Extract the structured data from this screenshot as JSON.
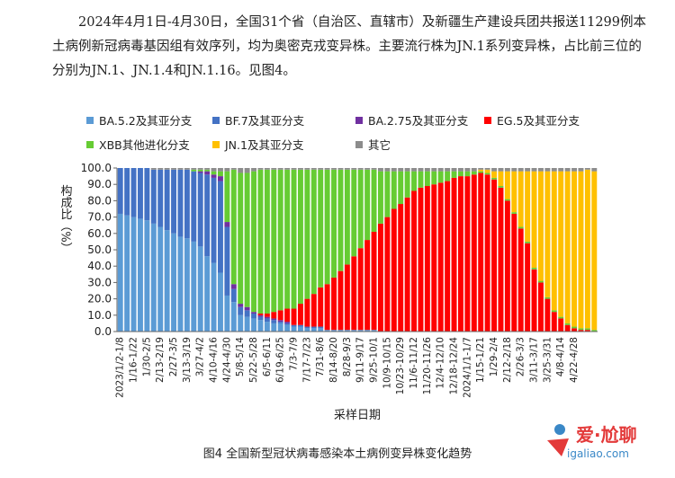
{
  "intro": {
    "line1": "2024年4月1日-4月30日，全国31个省（自治区、直辖市）及新疆生产建设兵团共报送11299例本土病例新冠病毒基因组有效序列，均为奥密克戎变异株。主要流行株为JN.1系列变异株，占比前三位的分别为JN.1、JN.1.4和JN.1.16。见图4。"
  },
  "caption": "图4 全国新型冠状病毒感染本土病例变异株变化趋势",
  "watermark": {
    "brand": "爱·尬聊",
    "url": "igaliao.com"
  },
  "chart_data": {
    "type": "bar",
    "stacked": true,
    "ylabel": "构成比（%）",
    "xlabel": "采样日期",
    "ylim": [
      0,
      100
    ],
    "yticks": [
      "0.0",
      "10.0",
      "20.0",
      "30.0",
      "40.0",
      "50.0",
      "60.0",
      "70.0",
      "80.0",
      "90.0",
      "100.0"
    ],
    "xticks_shown": [
      "2023/1/2-1/8",
      "1/16-1/22",
      "1/30-2/5",
      "2/13-2/19",
      "2/27-3/5",
      "3/13-3/19",
      "3/27-4/2",
      "4/10-4/16",
      "4/24-4/30",
      "5/8-5/14",
      "5/22-5/28",
      "6/5-6/11",
      "6/19-6/25",
      "7/3-7/9",
      "7/17-7/23",
      "7/31-8/6",
      "8/14-8/20",
      "8/28-9/3",
      "9/11-9/17",
      "9/25-10/1",
      "10/9-10/15",
      "10/23-10/29",
      "11/6-11/12",
      "11/20-11/26",
      "12/4-12/10",
      "12/18-12/24",
      "2024/1/1-1/7",
      "1/15-1/21",
      "1/29-2/4",
      "2/12-2/18",
      "2/26-3/3",
      "3/11-3/17",
      "3/25-3/31",
      "4/8-4/14",
      "4/22-4/28"
    ],
    "series": [
      {
        "name": "BA.5.2及其亚分支",
        "color": "#5b9bd5",
        "values": [
          72,
          71,
          70,
          69,
          68,
          66,
          64,
          62,
          60,
          58,
          57,
          55,
          52,
          46,
          42,
          36,
          22,
          18,
          10,
          9,
          8,
          7,
          6,
          5,
          5,
          4,
          3,
          3,
          2,
          2,
          2,
          1,
          1,
          1,
          1,
          1,
          1,
          1,
          1,
          0,
          0,
          0,
          0,
          0,
          0,
          0,
          0,
          0,
          0,
          0,
          0,
          0,
          0,
          0,
          0,
          0,
          0,
          0,
          0,
          0,
          0,
          0,
          0,
          0,
          0,
          0,
          0,
          0,
          0,
          0,
          0,
          0
        ]
      },
      {
        "name": "BF.7及其亚分支",
        "color": "#4472c4",
        "values": [
          28,
          29,
          30,
          31,
          32,
          33,
          35,
          37,
          39,
          41,
          42,
          43,
          45,
          50,
          52,
          56,
          42,
          8,
          5,
          4,
          3,
          2,
          2,
          2,
          1,
          1,
          1,
          1,
          1,
          1,
          1,
          0,
          0,
          0,
          0,
          0,
          0,
          0,
          0,
          0,
          0,
          0,
          0,
          0,
          0,
          0,
          0,
          0,
          0,
          0,
          0,
          0,
          0,
          0,
          0,
          0,
          0,
          0,
          0,
          0,
          0,
          0,
          0,
          0,
          0,
          0,
          0,
          0,
          0,
          0,
          0,
          0
        ]
      },
      {
        "name": "BA.2.75及其亚分支",
        "color": "#7030a0",
        "values": [
          0,
          0,
          0,
          0,
          0,
          0,
          0,
          0,
          0,
          0,
          0,
          0,
          1,
          2,
          2,
          3,
          3,
          3,
          2,
          2,
          1,
          1,
          1,
          1,
          1,
          1,
          0,
          0,
          0,
          0,
          0,
          0,
          0,
          0,
          0,
          0,
          0,
          0,
          0,
          0,
          0,
          0,
          0,
          0,
          0,
          0,
          0,
          0,
          0,
          0,
          0,
          0,
          0,
          0,
          0,
          0,
          0,
          0,
          0,
          0,
          0,
          0,
          0,
          0,
          0,
          0,
          0,
          0,
          0,
          0,
          0,
          0
        ]
      },
      {
        "name": "EG.5及其亚分支",
        "color": "#ff0000",
        "values": [
          0,
          0,
          0,
          0,
          0,
          0,
          0,
          0,
          0,
          0,
          0,
          0,
          0,
          0,
          0,
          0,
          0,
          0,
          0,
          0,
          0,
          1,
          2,
          4,
          6,
          8,
          10,
          13,
          17,
          20,
          24,
          28,
          32,
          36,
          40,
          45,
          50,
          55,
          60,
          66,
          70,
          75,
          78,
          82,
          86,
          88,
          89,
          90,
          91,
          92,
          94,
          95,
          95,
          96,
          97,
          96,
          93,
          88,
          80,
          72,
          63,
          54,
          38,
          30,
          20,
          12,
          8,
          4,
          2,
          1,
          1,
          0
        ]
      },
      {
        "name": "XBB其他进化分支",
        "color": "#66cc33",
        "values": [
          0,
          0,
          0,
          0,
          0,
          0,
          0,
          0,
          0,
          0,
          0,
          1,
          1,
          1,
          2,
          3,
          31,
          70,
          80,
          82,
          86,
          88,
          88,
          87,
          86,
          85,
          85,
          82,
          79,
          76,
          72,
          70,
          66,
          62,
          58,
          53,
          48,
          43,
          38,
          32,
          28,
          23,
          20,
          16,
          12,
          10,
          9,
          8,
          7,
          6,
          4,
          3,
          3,
          2,
          1,
          1,
          1,
          1,
          1,
          1,
          1,
          1,
          1,
          1,
          1,
          1,
          1,
          1,
          1,
          1,
          1,
          1
        ]
      },
      {
        "name": "JN.1及其亚分支",
        "color": "#ffc000",
        "values": [
          0,
          0,
          0,
          0,
          0,
          0,
          0,
          0,
          0,
          0,
          0,
          0,
          0,
          0,
          0,
          0,
          0,
          0,
          0,
          0,
          0,
          0,
          0,
          0,
          0,
          0,
          0,
          0,
          0,
          0,
          0,
          0,
          0,
          0,
          0,
          0,
          0,
          0,
          0,
          0,
          0,
          0,
          0,
          0,
          0,
          0,
          0,
          0,
          0,
          0,
          0,
          0,
          0,
          0,
          1,
          2,
          4,
          9,
          17,
          25,
          34,
          43,
          59,
          67,
          77,
          85,
          89,
          93,
          95,
          96,
          97,
          97
        ]
      },
      {
        "name": "其它",
        "color": "#8c8c8c",
        "values": [
          0,
          0,
          0,
          0,
          0,
          1,
          1,
          1,
          1,
          1,
          1,
          1,
          1,
          1,
          2,
          2,
          2,
          1,
          3,
          3,
          2,
          1,
          1,
          1,
          1,
          1,
          1,
          1,
          1,
          1,
          1,
          1,
          1,
          1,
          1,
          1,
          1,
          1,
          1,
          2,
          2,
          2,
          2,
          2,
          2,
          2,
          2,
          2,
          2,
          2,
          2,
          2,
          2,
          2,
          1,
          1,
          2,
          2,
          2,
          2,
          2,
          2,
          2,
          2,
          2,
          2,
          2,
          2,
          2,
          3,
          2,
          3
        ]
      }
    ]
  }
}
